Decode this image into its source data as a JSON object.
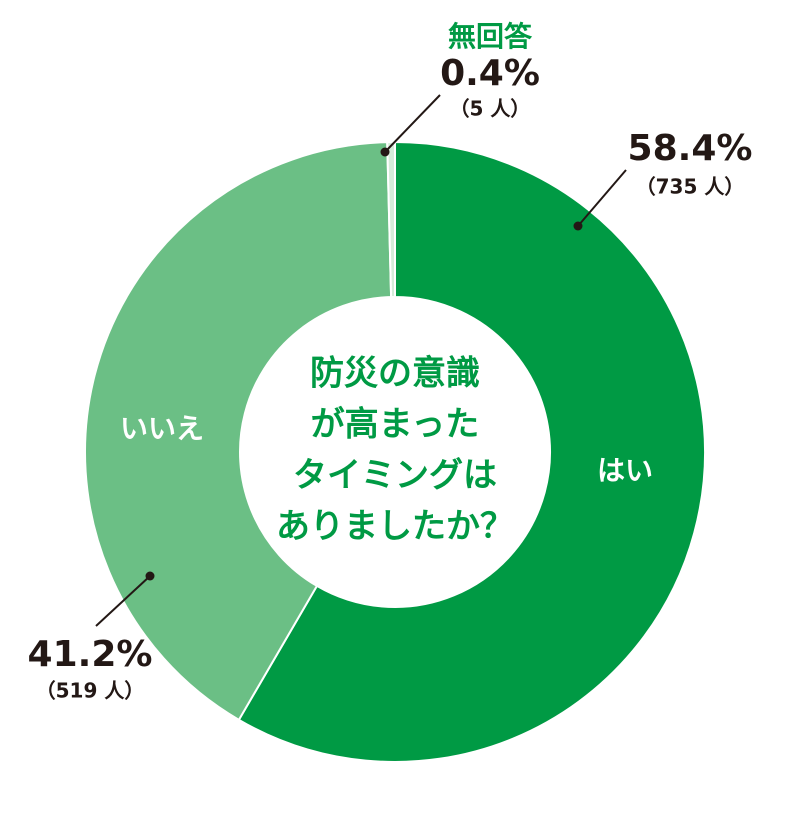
{
  "chart_data": {
    "type": "pie",
    "title_lines": [
      "防災の意識",
      "が高まった",
      "タイミングは",
      "ありましたか？"
    ],
    "categories": [
      "はい",
      "いいえ",
      "無回答"
    ],
    "values": [
      58.4,
      41.2,
      0.4
    ],
    "value_labels": [
      "58.4%",
      "41.2%",
      "0.4%"
    ],
    "count_labels": [
      "（735 人）",
      "（519 人）",
      "（5 人）"
    ],
    "colors": [
      "#009a44",
      "#6bbf85",
      "#d5ecd9"
    ]
  }
}
